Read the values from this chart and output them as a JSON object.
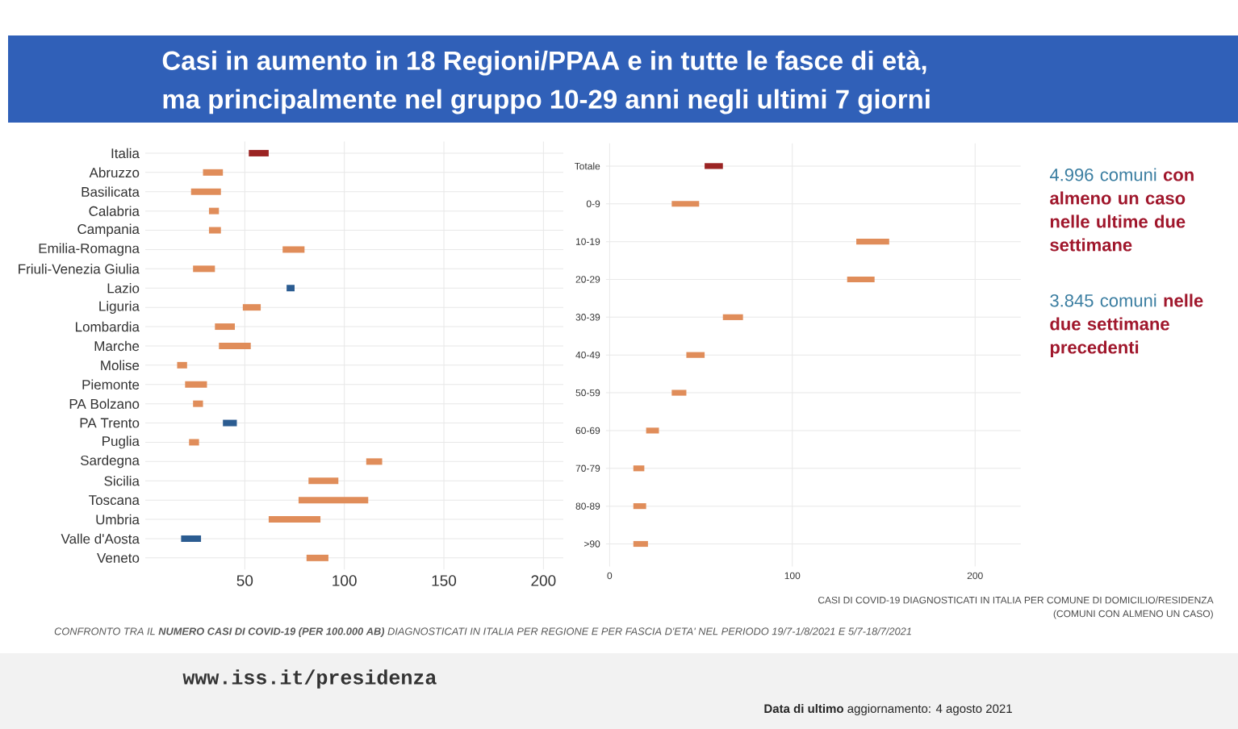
{
  "chart_data": [
    {
      "type": "other",
      "title": "Casi in aumento in 18 Regioni/PPAA e in tutte le fasce di età,",
      "subtitle": "ma principalmente nel gruppo 10-29 anni negli ultimi 7 giorni"
    },
    {
      "type": "bar",
      "orientation": "horizontal",
      "categories": [
        "Italia",
        "Abruzzo",
        "Basilicata",
        "Calabria",
        "Campania",
        "Emilia-Romagna",
        "Friuli-Venezia Giulia",
        "Lazio",
        "Liguria",
        "Lombardia",
        "Marche",
        "Molise",
        "Piemonte",
        "PA Bolzano",
        "PA Trento",
        "Puglia",
        "Sardegna",
        "Sicilia",
        "Toscana",
        "Umbria",
        "Valle d'Aosta",
        "Veneto"
      ],
      "base": [
        52,
        29,
        23,
        32,
        32,
        69,
        24,
        75,
        49,
        35,
        37,
        16,
        20,
        24,
        46,
        22,
        111,
        82,
        77,
        62,
        28,
        81
      ],
      "values": [
        10,
        10,
        15,
        5,
        6,
        11,
        11,
        -4,
        9,
        10,
        16,
        5,
        11,
        5,
        -7,
        5,
        8,
        15,
        35,
        26,
        -10,
        11
      ],
      "colors": [
        "#9b2423",
        "#e08d5a",
        "#e08d5a",
        "#e08d5a",
        "#e08d5a",
        "#e08d5a",
        "#e08d5a",
        "#2b5c91",
        "#e08d5a",
        "#e08d5a",
        "#e08d5a",
        "#e08d5a",
        "#e08d5a",
        "#e08d5a",
        "#2b5c91",
        "#e08d5a",
        "#e08d5a",
        "#e08d5a",
        "#e08d5a",
        "#e08d5a",
        "#2b5c91",
        "#e08d5a"
      ],
      "xlim": [
        0,
        210
      ],
      "xticks": [
        50,
        100,
        150,
        200
      ],
      "grid": true,
      "annotations": [
        "CONFRONTO TRA IL **NUMERO CASI DI COVID-19 (PER 100.000 AB)** DIAGNOSTICATI IN ITALIA PER REGIONE E PER FASCIA D'ETA' NEL PERIODO 19/7-1/8/2021 E 5/7-18/7/2021"
      ]
    },
    {
      "type": "bar",
      "orientation": "horizontal",
      "categories": [
        "Totale",
        "0-9",
        "10-19",
        "20-29",
        "30-39",
        "40-49",
        "50-59",
        "60-69",
        "70-79",
        "80-89",
        ">90"
      ],
      "base": [
        52,
        34,
        135,
        130,
        62,
        42,
        34,
        20,
        13,
        13,
        13
      ],
      "values": [
        10,
        15,
        18,
        15,
        11,
        10,
        8,
        7,
        6,
        7,
        8
      ],
      "colors": [
        "#9b2423",
        "#e08d5a",
        "#e08d5a",
        "#e08d5a",
        "#e08d5a",
        "#e08d5a",
        "#e08d5a",
        "#e08d5a",
        "#e08d5a",
        "#e08d5a",
        "#e08d5a"
      ],
      "xlim": [
        -2,
        225
      ],
      "xticks": [
        0,
        100,
        200
      ],
      "grid": true
    },
    {
      "type": "other",
      "annotations": [
        "4.996 comuni **con almeno un caso nelle ultime due settimane**",
        "3.845 comuni **nelle due settimane precedenti**",
        "CASI DI COVID-19 DIAGNOSTICATI IN ITALIA PER COMUNE DI DOMICILIO/RESIDENZA",
        "(COMUNI CON ALMENO UN CASO)",
        "www.iss.it/presidenza",
        "**Data di ultimo** aggiornamento: 4 agosto 2021"
      ]
    }
  ]
}
